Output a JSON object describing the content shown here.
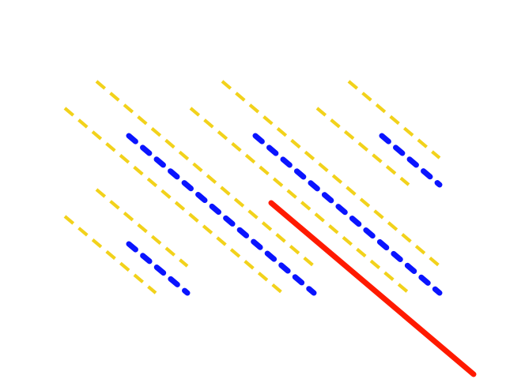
{
  "scene": {
    "background": "#ffffff",
    "colors": {
      "yellow": "#f2d21b",
      "blue": "#0a14ff",
      "red": "#ff1a00"
    }
  }
}
